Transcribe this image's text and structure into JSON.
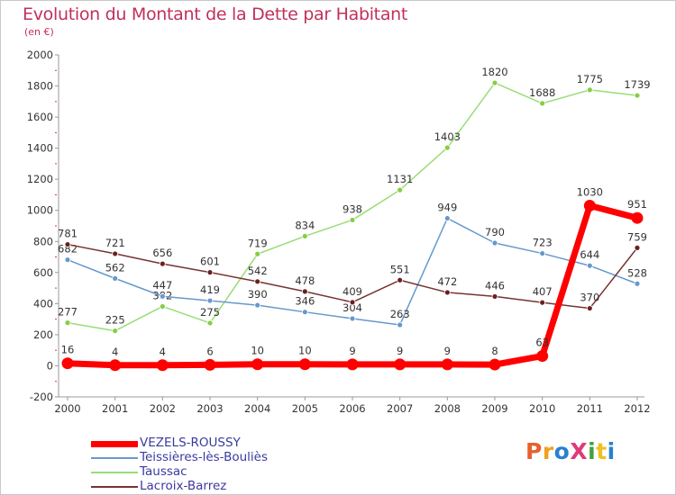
{
  "title": "Evolution du Montant de la Dette par Habitant",
  "unit_label": "(en €)",
  "logo": {
    "text": "ProXiti",
    "colors": [
      "#e8602c",
      "#f0a020",
      "#2a7fd0",
      "#e03a7a",
      "#40a040",
      "#f0c020",
      "#2a7fd0"
    ]
  },
  "chart_data": {
    "type": "line",
    "x": [
      "2000",
      "2001",
      "2002",
      "2003",
      "2004",
      "2005",
      "2006",
      "2007",
      "2008",
      "2009",
      "2010",
      "2011",
      "2012"
    ],
    "ylim": [
      -200,
      2000
    ],
    "yticks": [
      -200,
      0,
      200,
      400,
      600,
      800,
      1000,
      1200,
      1400,
      1600,
      1800,
      2000
    ],
    "grid": false,
    "legend_position": "bottom-left",
    "series": [
      {
        "name": "Taussac",
        "color": "#99dd77",
        "dot": "#88cc44",
        "values": [
          277,
          225,
          382,
          275,
          719,
          834,
          938,
          1131,
          1403,
          1820,
          1688,
          1775,
          1739
        ],
        "labels": [
          "277",
          "225",
          "382",
          "275",
          "719",
          "834",
          "938",
          "1131",
          "1403",
          "1820",
          "1688",
          "1775",
          "1739"
        ]
      },
      {
        "name": "Teissières-lès-Bouliès",
        "color": "#6699cc",
        "dot": "#6699cc",
        "values": [
          682,
          562,
          447,
          419,
          390,
          346,
          304,
          263,
          949,
          790,
          723,
          644,
          528
        ],
        "labels": [
          "682",
          "562",
          "447",
          "419",
          "390",
          "346",
          "304",
          "263",
          "949",
          "790",
          "723",
          "644",
          "528"
        ]
      },
      {
        "name": "Lacroix-Barrez",
        "color": "#773333",
        "dot": "#6a2020",
        "values": [
          781,
          721,
          656,
          601,
          542,
          478,
          409,
          551,
          472,
          446,
          407,
          370,
          759
        ],
        "labels": [
          "781",
          "721",
          "656",
          "601",
          "542",
          "478",
          "409",
          "551",
          "472",
          "446",
          "407",
          "370",
          "759"
        ]
      },
      {
        "name": "VEZELS-ROUSSY",
        "color": "#ff0000",
        "dot": "#ff0000",
        "values": [
          16,
          4,
          4,
          6,
          10,
          10,
          9,
          9,
          9,
          8,
          63,
          1030,
          951
        ],
        "labels": [
          "16",
          "4",
          "4",
          "6",
          "10",
          "10",
          "9",
          "9",
          "9",
          "8",
          "63",
          "1030",
          "951"
        ]
      }
    ],
    "legend_order": [
      "VEZELS-ROUSSY",
      "Teissières-lès-Bouliès",
      "Taussac",
      "Lacroix-Barrez"
    ]
  }
}
